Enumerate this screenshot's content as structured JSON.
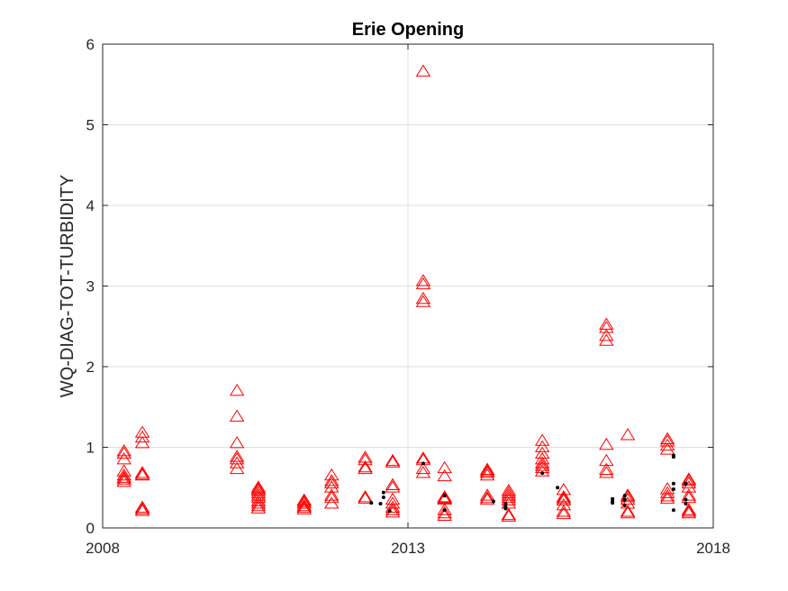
{
  "chart_data": {
    "type": "scatter",
    "title": "Erie Opening",
    "xlabel": "",
    "ylabel": "WQ-DIAG-TOT-TURBIDITY",
    "xlim": [
      2008,
      2018
    ],
    "ylim": [
      0,
      6
    ],
    "x_ticks": [
      "2008",
      "2013",
      "2018"
    ],
    "y_ticks": [
      "0",
      "1",
      "2",
      "3",
      "4",
      "5",
      "6"
    ],
    "grid": true,
    "colors": {
      "triangle_series": "#ff0000",
      "dot_series": "#000000",
      "grid": "#dfdfdf",
      "axes": "#262626"
    },
    "series": [
      {
        "marker": "triangle",
        "points": [
          [
            2008.35,
            0.95
          ],
          [
            2008.35,
            0.92
          ],
          [
            2008.35,
            0.85
          ],
          [
            2008.35,
            0.7
          ],
          [
            2008.35,
            0.65
          ],
          [
            2008.35,
            0.62
          ],
          [
            2008.35,
            0.6
          ],
          [
            2008.35,
            0.57
          ],
          [
            2008.65,
            1.18
          ],
          [
            2008.65,
            1.12
          ],
          [
            2008.65,
            1.05
          ],
          [
            2008.65,
            0.68
          ],
          [
            2008.65,
            0.66
          ],
          [
            2008.65,
            0.65
          ],
          [
            2008.65,
            0.25
          ],
          [
            2008.65,
            0.23
          ],
          [
            2008.65,
            0.21
          ],
          [
            2010.2,
            1.7
          ],
          [
            2010.2,
            1.38
          ],
          [
            2010.2,
            1.05
          ],
          [
            2010.2,
            0.88
          ],
          [
            2010.2,
            0.85
          ],
          [
            2010.2,
            0.8
          ],
          [
            2010.2,
            0.73
          ],
          [
            2010.55,
            0.5
          ],
          [
            2010.55,
            0.48
          ],
          [
            2010.55,
            0.46
          ],
          [
            2010.55,
            0.43
          ],
          [
            2010.55,
            0.4
          ],
          [
            2010.55,
            0.37
          ],
          [
            2010.55,
            0.33
          ],
          [
            2010.55,
            0.3
          ],
          [
            2010.55,
            0.27
          ],
          [
            2010.55,
            0.24
          ],
          [
            2011.3,
            0.34
          ],
          [
            2011.3,
            0.32
          ],
          [
            2011.3,
            0.3
          ],
          [
            2011.3,
            0.27
          ],
          [
            2011.3,
            0.25
          ],
          [
            2011.3,
            0.23
          ],
          [
            2011.75,
            0.65
          ],
          [
            2011.75,
            0.58
          ],
          [
            2011.75,
            0.55
          ],
          [
            2011.75,
            0.5
          ],
          [
            2011.75,
            0.4
          ],
          [
            2011.75,
            0.37
          ],
          [
            2011.75,
            0.3
          ],
          [
            2012.3,
            0.87
          ],
          [
            2012.3,
            0.84
          ],
          [
            2012.3,
            0.75
          ],
          [
            2012.3,
            0.73
          ],
          [
            2012.3,
            0.38
          ],
          [
            2012.3,
            0.36
          ],
          [
            2012.75,
            0.83
          ],
          [
            2012.75,
            0.81
          ],
          [
            2012.75,
            0.53
          ],
          [
            2012.75,
            0.5
          ],
          [
            2012.75,
            0.35
          ],
          [
            2012.75,
            0.3
          ],
          [
            2012.75,
            0.25
          ],
          [
            2012.75,
            0.22
          ],
          [
            2012.75,
            0.19
          ],
          [
            2013.25,
            5.66
          ],
          [
            2013.25,
            3.06
          ],
          [
            2013.25,
            3.02
          ],
          [
            2013.25,
            2.84
          ],
          [
            2013.25,
            2.8
          ],
          [
            2013.25,
            0.86
          ],
          [
            2013.25,
            0.84
          ],
          [
            2013.25,
            0.73
          ],
          [
            2013.25,
            0.68
          ],
          [
            2013.6,
            0.74
          ],
          [
            2013.6,
            0.64
          ],
          [
            2013.6,
            0.38
          ],
          [
            2013.6,
            0.37
          ],
          [
            2013.6,
            0.36
          ],
          [
            2013.6,
            0.35
          ],
          [
            2013.6,
            0.22
          ],
          [
            2013.6,
            0.18
          ],
          [
            2013.6,
            0.15
          ],
          [
            2014.3,
            0.72
          ],
          [
            2014.3,
            0.7
          ],
          [
            2014.3,
            0.68
          ],
          [
            2014.3,
            0.65
          ],
          [
            2014.3,
            0.4
          ],
          [
            2014.3,
            0.37
          ],
          [
            2014.3,
            0.35
          ],
          [
            2014.65,
            0.46
          ],
          [
            2014.65,
            0.43
          ],
          [
            2014.65,
            0.4
          ],
          [
            2014.65,
            0.37
          ],
          [
            2014.65,
            0.34
          ],
          [
            2014.65,
            0.3
          ],
          [
            2014.65,
            0.16
          ],
          [
            2014.65,
            0.14
          ],
          [
            2015.2,
            1.08
          ],
          [
            2015.2,
            1.0
          ],
          [
            2015.2,
            0.92
          ],
          [
            2015.2,
            0.85
          ],
          [
            2015.2,
            0.8
          ],
          [
            2015.2,
            0.77
          ],
          [
            2015.2,
            0.74
          ],
          [
            2015.2,
            0.7
          ],
          [
            2015.55,
            0.47
          ],
          [
            2015.55,
            0.38
          ],
          [
            2015.55,
            0.36
          ],
          [
            2015.55,
            0.34
          ],
          [
            2015.55,
            0.28
          ],
          [
            2015.55,
            0.2
          ],
          [
            2015.55,
            0.17
          ],
          [
            2016.25,
            2.52
          ],
          [
            2016.25,
            2.48
          ],
          [
            2016.25,
            2.38
          ],
          [
            2016.25,
            2.32
          ],
          [
            2016.25,
            1.03
          ],
          [
            2016.25,
            0.83
          ],
          [
            2016.25,
            0.72
          ],
          [
            2016.25,
            0.68
          ],
          [
            2016.6,
            1.15
          ],
          [
            2016.6,
            0.4
          ],
          [
            2016.6,
            0.38
          ],
          [
            2016.6,
            0.35
          ],
          [
            2016.6,
            0.3
          ],
          [
            2016.6,
            0.2
          ],
          [
            2016.6,
            0.18
          ],
          [
            2017.25,
            1.1
          ],
          [
            2017.25,
            1.07
          ],
          [
            2017.25,
            1.02
          ],
          [
            2017.25,
            0.97
          ],
          [
            2017.25,
            0.48
          ],
          [
            2017.25,
            0.43
          ],
          [
            2017.25,
            0.39
          ],
          [
            2017.25,
            0.36
          ],
          [
            2017.6,
            0.6
          ],
          [
            2017.6,
            0.58
          ],
          [
            2017.6,
            0.55
          ],
          [
            2017.6,
            0.5
          ],
          [
            2017.6,
            0.4
          ],
          [
            2017.6,
            0.37
          ],
          [
            2017.6,
            0.22
          ],
          [
            2017.6,
            0.2
          ],
          [
            2017.6,
            0.18
          ]
        ]
      },
      {
        "marker": "dot",
        "points": [
          [
            2012.4,
            0.31
          ],
          [
            2012.6,
            0.44
          ],
          [
            2012.6,
            0.38
          ],
          [
            2012.7,
            0.21
          ],
          [
            2012.55,
            0.3
          ],
          [
            2013.25,
            0.8
          ],
          [
            2013.6,
            0.22
          ],
          [
            2013.6,
            0.4
          ],
          [
            2014.4,
            0.33
          ],
          [
            2014.6,
            0.3
          ],
          [
            2014.6,
            0.26
          ],
          [
            2014.6,
            0.24
          ],
          [
            2015.2,
            0.68
          ],
          [
            2015.45,
            0.5
          ],
          [
            2016.35,
            0.36
          ],
          [
            2016.35,
            0.33
          ],
          [
            2016.35,
            0.31
          ],
          [
            2016.55,
            0.4
          ],
          [
            2016.55,
            0.35
          ],
          [
            2016.55,
            0.28
          ],
          [
            2017.35,
            0.9
          ],
          [
            2017.35,
            0.88
          ],
          [
            2017.35,
            0.55
          ],
          [
            2017.35,
            0.48
          ],
          [
            2017.35,
            0.22
          ],
          [
            2017.55,
            0.55
          ],
          [
            2017.55,
            0.35
          ],
          [
            2017.55,
            0.3
          ]
        ]
      }
    ]
  }
}
